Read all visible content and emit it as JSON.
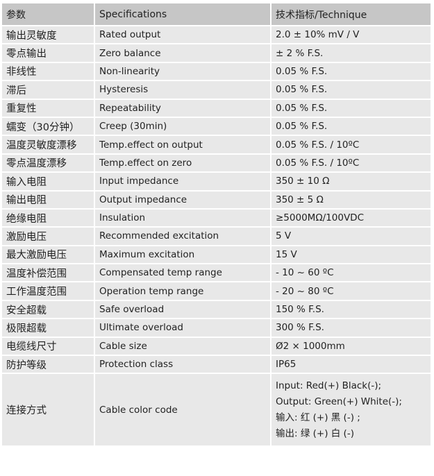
{
  "header": {
    "param": "参数",
    "spec": "Specifications",
    "tech": "技术指标/Technique"
  },
  "rows": [
    {
      "param": "输出灵敏度",
      "spec": "Rated output",
      "value": "2.0 ± 10% mV / V"
    },
    {
      "param": "零点输出",
      "spec": "Zero balance",
      "value": "± 2 % F.S."
    },
    {
      "param": "非线性",
      "spec": "Non-linearity",
      "value": "0.05 % F.S."
    },
    {
      "param": "滞后",
      "spec": "Hysteresis",
      "value": "0.05 % F.S."
    },
    {
      "param": "重复性",
      "spec": "Repeatability",
      "value": "0.05 % F.S."
    },
    {
      "param": "蠕变（30分钟）",
      "spec": "Creep (30min)",
      "value": "0.05 % F.S."
    },
    {
      "param": "温度灵敏度漂移",
      "spec": "Temp.effect on output",
      "value": "0.05 % F.S. / 10ºC"
    },
    {
      "param": "零点温度漂移",
      "spec": "Temp.effect on zero",
      "value": "0.05 % F.S. / 10ºC"
    },
    {
      "param": "输入电阻",
      "spec": "Input impedance",
      "value": "350 ± 10 Ω"
    },
    {
      "param": "输出电阻",
      "spec": "Output impedance",
      "value": "350 ± 5 Ω"
    },
    {
      "param": "绝缘电阻",
      "spec": "Insulation",
      "value": "≥5000MΩ/100VDC"
    },
    {
      "param": "激励电压",
      "spec": "Recommended excitation",
      "value": "5 V"
    },
    {
      "param": "最大激励电压",
      "spec": "Maximum excitation",
      "value": "15 V"
    },
    {
      "param": "温度补偿范围",
      "spec": "Compensated temp range",
      "value": "- 10 ~ 60 ºC"
    },
    {
      "param": "工作温度范围",
      "spec": "Operation temp range",
      "value": "- 20 ~ 80 ºC"
    },
    {
      "param": "安全超载",
      "spec": "Safe overload",
      "value": "150 % F.S."
    },
    {
      "param": "极限超载",
      "spec": "Ultimate overload",
      "value": "300 % F.S."
    },
    {
      "param": "电缆线尺寸",
      "spec": "Cable size",
      "value": "Ø2 × 1000mm"
    },
    {
      "param": "防护等级",
      "spec": "Protection class",
      "value": "IP65"
    }
  ],
  "cable": {
    "param": "连接方式",
    "spec": "Cable color code",
    "lines": [
      "Input: Red(+) Black(-);",
      "Output: Green(+) White(-);",
      "输入:  红 (+)    黑 (-) ;",
      "输出:  绿 (+)    白 (-)"
    ]
  }
}
